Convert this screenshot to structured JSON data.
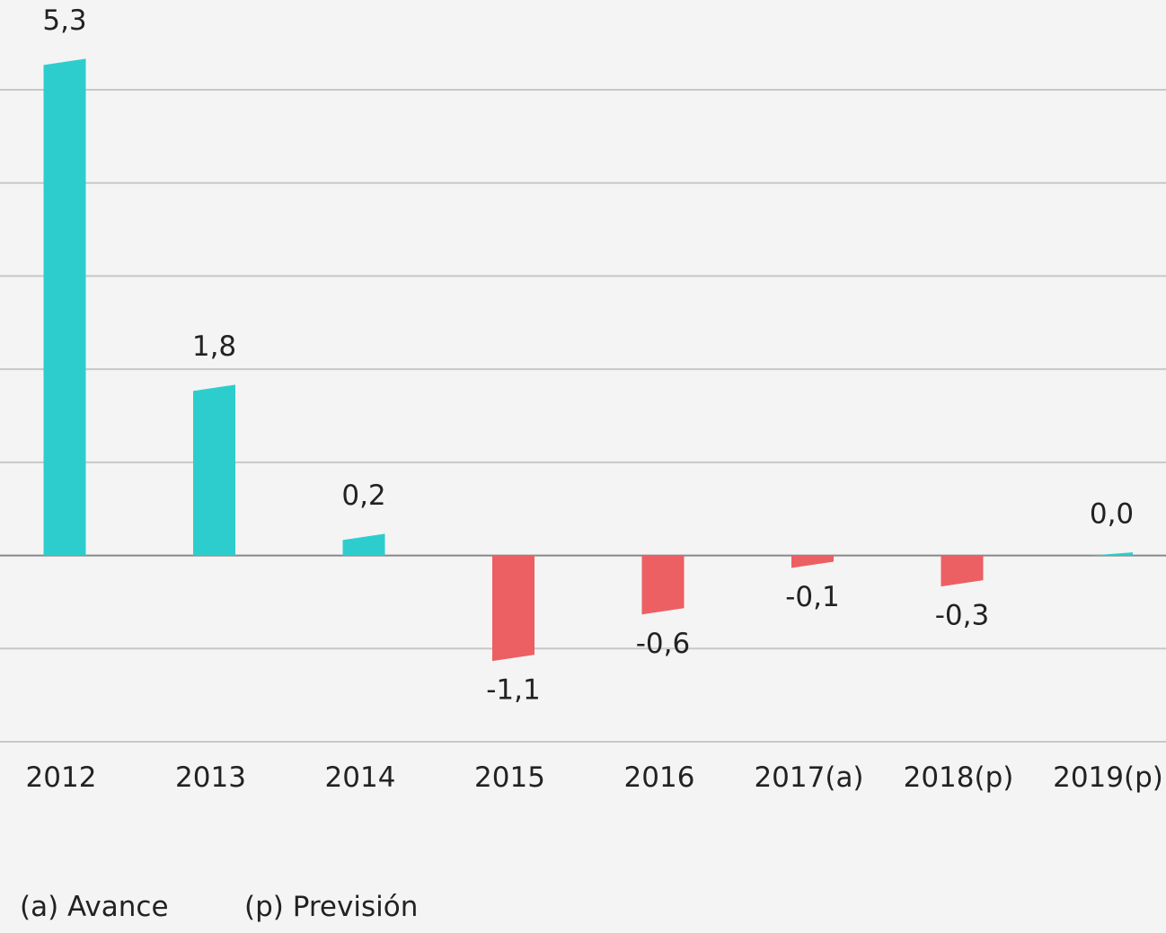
{
  "chart_data": {
    "type": "bar",
    "categories": [
      "2012",
      "2013",
      "2014",
      "2015",
      "2016",
      "2017(a)",
      "2018(p)",
      "2019(p)"
    ],
    "values": [
      5.3,
      1.8,
      0.2,
      -1.1,
      -0.6,
      -0.1,
      -0.3,
      0.0
    ],
    "value_labels": [
      "5,3",
      "1,8",
      "0,2",
      "-1,1",
      "-0,6",
      "-0,1",
      "-0,3",
      "0,0"
    ],
    "color": "#2ecdcd",
    "negative_color": "#ec5f63",
    "ylim": [
      -2,
      5
    ],
    "yticks": [
      -2,
      -1,
      0,
      1,
      2,
      3,
      4,
      5
    ],
    "grid": true,
    "notes": [
      "(a) Avance",
      "(p) Previsión"
    ]
  }
}
